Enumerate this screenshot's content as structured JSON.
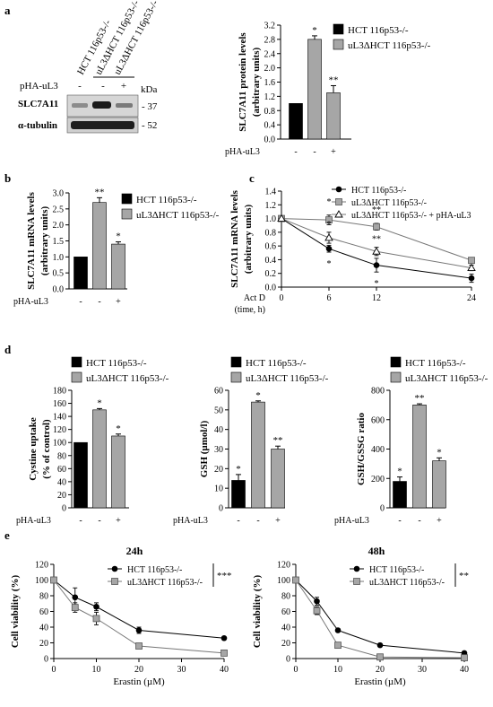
{
  "colors": {
    "black": "#000000",
    "grey": "#a6a6a6",
    "white": "#ffffff",
    "line": "#000000"
  },
  "panels": {
    "a": {
      "letter": "a",
      "blot": {
        "lanes": [
          "HCT 116p53-/-",
          "uL3ΔHCT 116p53-/-",
          "uL3ΔHCT 116p53-/-"
        ],
        "treatment_label": "pHA-uL3",
        "treatment": [
          "-",
          "-",
          "+"
        ],
        "kda_label": "kDa",
        "rows": [
          {
            "name": "SLC7A11",
            "kda": "- 37"
          },
          {
            "name": "α-tubulin",
            "kda": "- 52"
          }
        ]
      }
    },
    "b": {
      "letter": "b"
    },
    "c": {
      "letter": "c"
    },
    "d": {
      "letter": "d"
    },
    "e": {
      "letter": "e"
    }
  },
  "chart_data": [
    {
      "id": "a_protein",
      "type": "bar",
      "ylabel": "SLC7A11 protein levels",
      "ylabel2": "(arbitrary units)",
      "ylim": [
        0,
        3.2
      ],
      "yticks": [
        "0.0",
        "0.4",
        "0.8",
        "1.2",
        "1.6",
        "2.0",
        "2.4",
        "2.8",
        "3.2"
      ],
      "treatment_label": "pHA-uL3",
      "treatment": [
        "-",
        "-",
        "+"
      ],
      "values": [
        1.0,
        2.8,
        1.3
      ],
      "errors": [
        0,
        0.1,
        0.2
      ],
      "sig": [
        "",
        "*",
        "**"
      ],
      "fills": [
        "#000000",
        "#a6a6a6",
        "#a6a6a6"
      ],
      "legend": [
        "HCT 116p53-/-",
        "uL3ΔHCT 116p53-/-"
      ]
    },
    {
      "id": "b_mrna",
      "type": "bar",
      "ylabel": "SLC7A11 mRNA levels",
      "ylabel2": "(arbitrary units)",
      "ylim": [
        0,
        3.0
      ],
      "yticks": [
        "0.0",
        "0.5",
        "1.0",
        "1.5",
        "2.0",
        "2.5",
        "3.0"
      ],
      "treatment_label": "pHA-uL3",
      "treatment": [
        "-",
        "-",
        "+"
      ],
      "values": [
        1.0,
        2.7,
        1.4
      ],
      "errors": [
        0,
        0.15,
        0.07
      ],
      "sig": [
        "",
        "**",
        "*"
      ],
      "fills": [
        "#000000",
        "#a6a6a6",
        "#a6a6a6"
      ],
      "legend": [
        "HCT 116p53-/-",
        "uL3ΔHCT 116p53-/-"
      ]
    },
    {
      "id": "c_actd",
      "type": "line",
      "ylabel": "SLC7A11 mRNA levels",
      "ylabel2": "(arbitrary units)",
      "xlabel": "Act D",
      "xlabel2": "(time, h)",
      "ylim": [
        0,
        1.4
      ],
      "yticks": [
        "0.0",
        "0.2",
        "0.4",
        "0.6",
        "0.8",
        "1.0",
        "1.2",
        "1.4"
      ],
      "x": [
        0,
        6,
        12,
        24
      ],
      "xticks": [
        "0",
        "6",
        "12",
        "24"
      ],
      "series": [
        {
          "name": "HCT 116p53-/-",
          "marker": "circle",
          "values": [
            1.0,
            0.56,
            0.32,
            0.13
          ],
          "errors": [
            0,
            0.05,
            0.1,
            0.06
          ],
          "sig": [
            "",
            "*",
            "*",
            ""
          ]
        },
        {
          "name": "uL3ΔHCT 116p53-/-",
          "marker": "square",
          "values": [
            1.0,
            0.98,
            0.88,
            0.39
          ],
          "errors": [
            0,
            0.07,
            0.05,
            0.04
          ],
          "sig": [
            "",
            "*",
            "**",
            ""
          ]
        },
        {
          "name": "uL3ΔHCT 116p53-/- + pHA-uL3",
          "marker": "triangle",
          "values": [
            1.0,
            0.72,
            0.52,
            0.28
          ],
          "errors": [
            0,
            0.08,
            0.06,
            0.04
          ],
          "sig": [
            "",
            "*",
            "**",
            ""
          ]
        }
      ]
    },
    {
      "id": "d_cystine",
      "type": "bar",
      "ylabel": "Cystine uptake",
      "ylabel2": "(% of control)",
      "ylim": [
        0,
        180
      ],
      "yticks": [
        "0",
        "20",
        "40",
        "60",
        "80",
        "100",
        "120",
        "140",
        "160",
        "180"
      ],
      "treatment_label": "pHA-uL3",
      "treatment": [
        "-",
        "-",
        "+"
      ],
      "values": [
        100,
        150,
        110
      ],
      "errors": [
        0,
        2,
        3
      ],
      "sig": [
        "",
        "*",
        "*"
      ],
      "fills": [
        "#000000",
        "#a6a6a6",
        "#a6a6a6"
      ],
      "legend": [
        "HCT 116p53-/-",
        "uL3ΔHCT 116p53-/-"
      ]
    },
    {
      "id": "d_gsh",
      "type": "bar",
      "ylabel": "GSH (µmol/l)",
      "ylabel2": "",
      "ylim": [
        0,
        60
      ],
      "yticks": [
        "0",
        "10",
        "20",
        "30",
        "40",
        "50",
        "60"
      ],
      "treatment_label": "pHA-uL3",
      "treatment": [
        "-",
        "-",
        "+"
      ],
      "values": [
        14,
        54,
        30
      ],
      "errors": [
        3,
        0.6,
        1.5
      ],
      "sig": [
        "*",
        "*",
        "**"
      ],
      "fills": [
        "#000000",
        "#a6a6a6",
        "#a6a6a6"
      ],
      "legend": [
        "HCT 116p53-/-",
        "uL3ΔHCT 116p53-/-"
      ]
    },
    {
      "id": "d_ratio",
      "type": "bar",
      "ylabel": "GSH/GSSG ratio",
      "ylabel2": "",
      "ylim": [
        0,
        800
      ],
      "yticks": [
        "0",
        "200",
        "400",
        "600",
        "800"
      ],
      "treatment_label": "pHA-uL3",
      "treatment": [
        "-",
        "-",
        "+"
      ],
      "values": [
        180,
        700,
        320
      ],
      "errors": [
        30,
        8,
        20
      ],
      "sig": [
        "*",
        "**",
        "*"
      ],
      "fills": [
        "#000000",
        "#a6a6a6",
        "#a6a6a6"
      ],
      "legend": [
        "HCT 116p53-/-",
        "uL3ΔHCT 116p53-/-"
      ]
    },
    {
      "id": "e_24h",
      "type": "line",
      "title": "24h",
      "ylabel": "Cell viability (%)",
      "xlabel": "Erastin (µM)",
      "ylim": [
        0,
        120
      ],
      "yticks": [
        "0",
        "20",
        "40",
        "60",
        "80",
        "100",
        "120"
      ],
      "x": [
        0,
        5,
        10,
        20,
        40
      ],
      "xlim": [
        0,
        40
      ],
      "xticks": [
        "0",
        "10",
        "20",
        "30",
        "40"
      ],
      "series": [
        {
          "name": "HCT 116p53-/-",
          "marker": "circle",
          "values": [
            100,
            78,
            66,
            36,
            26
          ],
          "errors": [
            0,
            12,
            5,
            4,
            2
          ],
          "sig": []
        },
        {
          "name": "uL3ΔHCT 116p53-/-",
          "marker": "square",
          "values": [
            100,
            65,
            51,
            16,
            7
          ],
          "errors": [
            0,
            6,
            8,
            2,
            1
          ],
          "sig": []
        }
      ],
      "bracket": "***"
    },
    {
      "id": "e_48h",
      "type": "line",
      "title": "48h",
      "ylabel": "Cell viability (%)",
      "xlabel": "Erastin (µM)",
      "ylim": [
        0,
        120
      ],
      "yticks": [
        "0",
        "20",
        "40",
        "60",
        "80",
        "100",
        "120"
      ],
      "x": [
        0,
        5,
        10,
        20,
        40
      ],
      "xlim": [
        0,
        40
      ],
      "xticks": [
        "0",
        "10",
        "20",
        "30",
        "40"
      ],
      "series": [
        {
          "name": "HCT 116p53-/-",
          "marker": "circle",
          "values": [
            100,
            73,
            36,
            17,
            7
          ],
          "errors": [
            0,
            5,
            2,
            1,
            1
          ],
          "sig": []
        },
        {
          "name": "uL3ΔHCT 116p53-/-",
          "marker": "square",
          "values": [
            100,
            61,
            17,
            2,
            1
          ],
          "errors": [
            0,
            5,
            2,
            1,
            1
          ],
          "sig": []
        }
      ],
      "bracket": "**"
    }
  ]
}
